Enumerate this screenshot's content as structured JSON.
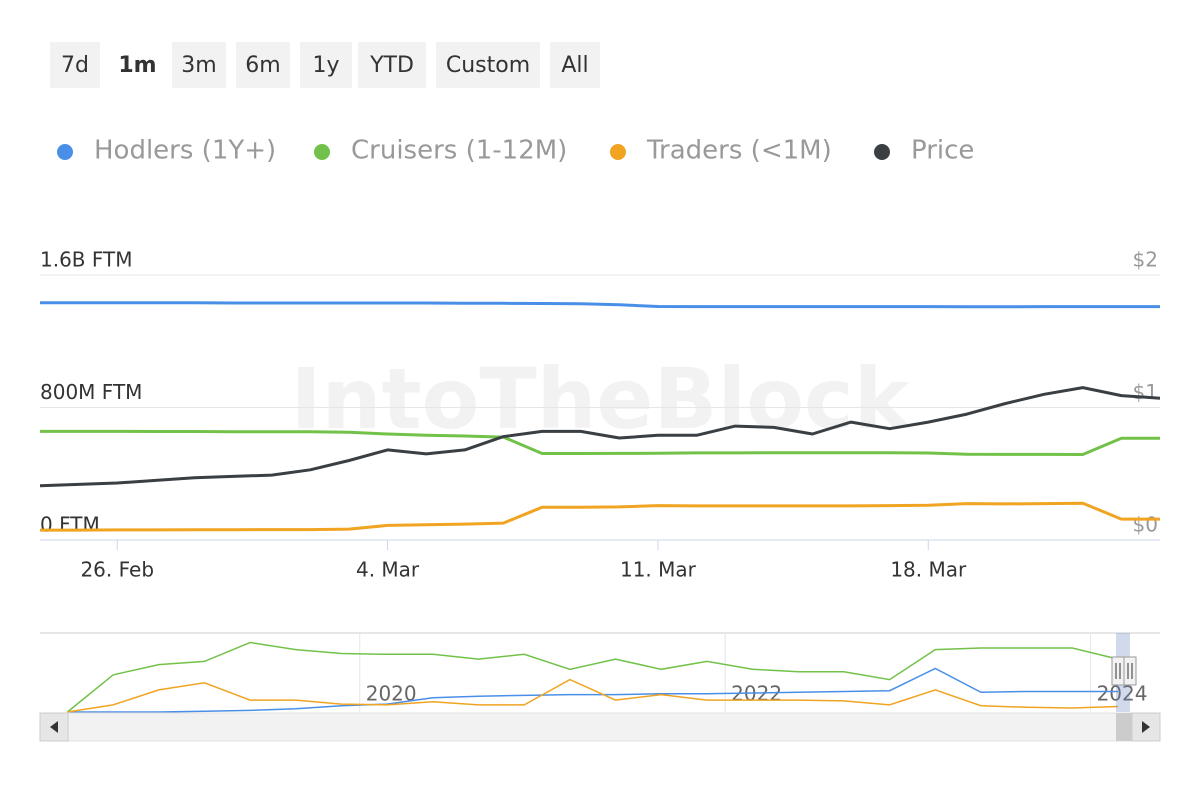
{
  "chart_data": {
    "type": "line",
    "range_buttons": [
      "7d",
      "1m",
      "3m",
      "6m",
      "1y",
      "YTD",
      "Custom",
      "All"
    ],
    "selected_range": 1,
    "watermark": "IntoTheBlock",
    "categories": [
      null,
      null,
      "26. Feb",
      null,
      null,
      null,
      null,
      null,
      null,
      "4. Mar",
      null,
      null,
      null,
      null,
      null,
      null,
      "11. Mar",
      null,
      null,
      null,
      null,
      null,
      null,
      "18. Mar",
      null,
      null,
      null,
      null,
      null,
      null
    ],
    "ylim": [
      0,
      1600000000
    ],
    "yticks": [
      {
        "value": 0,
        "label": "0 FTM"
      },
      {
        "value": 800000000,
        "label": "800M FTM"
      },
      {
        "value": 1600000000,
        "label": "1.6B FTM"
      }
    ],
    "y2lim": [
      0,
      2
    ],
    "y2ticks": [
      {
        "value": 0,
        "label": "$0"
      },
      {
        "value": 1,
        "label": "$1"
      },
      {
        "value": 2,
        "label": "$2"
      }
    ],
    "grid": true,
    "series": [
      {
        "name": "Hodlers (1Y+)",
        "color": "#4a8fe7",
        "values": [
          1432000000,
          1432000000,
          1432000000,
          1432000000,
          1432000000,
          1431000000,
          1431000000,
          1431000000,
          1431000000,
          1431000000,
          1431000000,
          1430000000,
          1429000000,
          1428000000,
          1427000000,
          1420000000,
          1410000000,
          1409000000,
          1409000000,
          1409000000,
          1409000000,
          1409000000,
          1409000000,
          1409000000,
          1408000000,
          1408000000,
          1409000000,
          1409000000,
          1409000000,
          1409000000
        ]
      },
      {
        "name": "Cruisers (1-12M)",
        "color": "#72c24a",
        "values": [
          656000000,
          656000000,
          656000000,
          655000000,
          655000000,
          654000000,
          654000000,
          653000000,
          650000000,
          640000000,
          632000000,
          628000000,
          621000000,
          522000000,
          522000000,
          523000000,
          524000000,
          526000000,
          526000000,
          527000000,
          527000000,
          527000000,
          527000000,
          525000000,
          518000000,
          517000000,
          517000000,
          516000000,
          614000000,
          614000000
        ]
      },
      {
        "name": "Traders (<1M)",
        "color": "#f0a422",
        "values": [
          60000000,
          60000000,
          61000000,
          61000000,
          62000000,
          62000000,
          63000000,
          63000000,
          66000000,
          88000000,
          92000000,
          96000000,
          102000000,
          198000000,
          198000000,
          200000000,
          208000000,
          206000000,
          206000000,
          206000000,
          206000000,
          206000000,
          208000000,
          210000000,
          220000000,
          218000000,
          220000000,
          222000000,
          126000000,
          126000000
        ]
      },
      {
        "name": "Price",
        "color": "#3a3f44",
        "axis": "y2",
        "values": [
          0.41,
          0.42,
          0.43,
          0.45,
          0.47,
          0.48,
          0.49,
          0.53,
          0.6,
          0.68,
          0.65,
          0.68,
          0.78,
          0.82,
          0.82,
          0.77,
          0.79,
          0.79,
          0.86,
          0.85,
          0.8,
          0.89,
          0.84,
          0.89,
          0.95,
          1.03,
          1.1,
          1.15,
          1.09,
          1.07
        ]
      }
    ],
    "navigator": {
      "x": [
        2018.4,
        2018.65,
        2018.9,
        2019.15,
        2019.4,
        2019.65,
        2019.9,
        2020.15,
        2020.4,
        2020.65,
        2020.9,
        2021.15,
        2021.4,
        2021.65,
        2021.9,
        2022.15,
        2022.4,
        2022.65,
        2022.9,
        2023.15,
        2023.4,
        2023.65,
        2023.9,
        2024.15
      ],
      "xlim": [
        2018.25,
        2024.38
      ],
      "xticks": [
        2020,
        2022,
        2024
      ],
      "ylim": [
        0,
        100
      ],
      "series": [
        {
          "color": "#4a8fe7",
          "values": [
            0,
            0,
            0,
            1,
            2,
            4,
            8,
            10,
            18,
            20,
            21,
            22,
            22,
            23,
            23,
            24,
            25,
            26,
            27,
            55,
            25,
            26,
            26,
            26
          ]
        },
        {
          "color": "#72c24a",
          "values": [
            0,
            47,
            60,
            64,
            88,
            79,
            74,
            73,
            73,
            67,
            73,
            54,
            67,
            54,
            64,
            54,
            51,
            51,
            41,
            79,
            81,
            81,
            81,
            67
          ]
        },
        {
          "color": "#f0a422",
          "values": [
            0,
            9,
            28,
            37,
            15,
            15,
            10,
            9,
            13,
            9,
            9,
            41,
            15,
            22,
            15,
            15,
            15,
            14,
            9,
            28,
            8,
            6,
            5,
            7
          ]
        }
      ]
    }
  }
}
